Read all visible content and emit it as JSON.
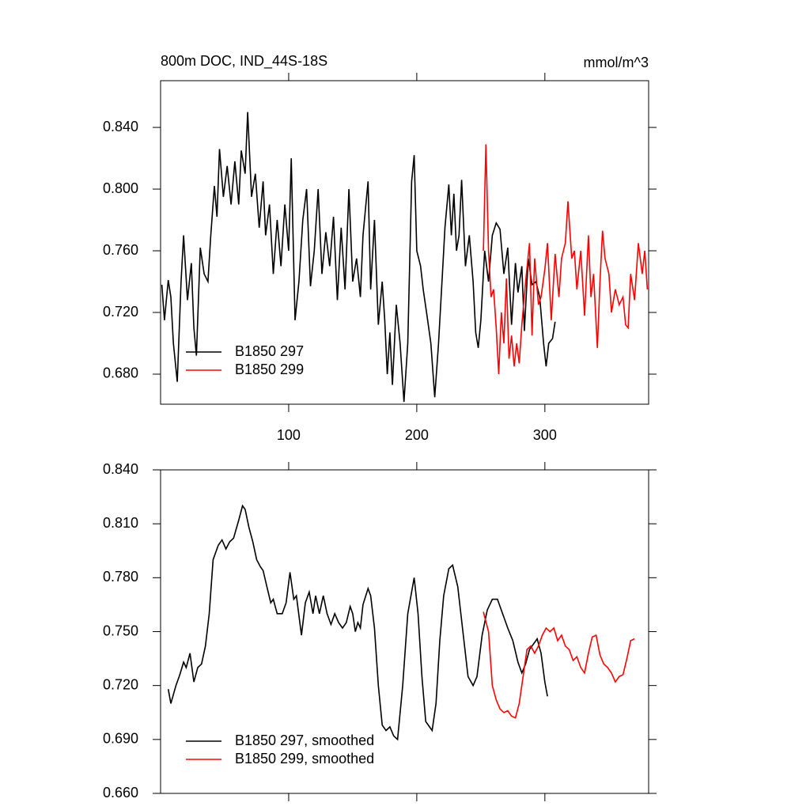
{
  "chart_data": [
    {
      "type": "line",
      "title": "800m DOC, IND_44S-18S",
      "units": "mmol/m^3",
      "xlim": [
        0,
        381
      ],
      "xticks": [
        100,
        200,
        300
      ],
      "xtick_labels": true,
      "ylim": [
        0.6605,
        0.8703
      ],
      "yticks": [
        {
          "value": 0.68,
          "label": "0.680"
        },
        {
          "value": 0.72,
          "label": "0.720"
        },
        {
          "value": 0.76,
          "label": "0.760"
        },
        {
          "value": 0.8,
          "label": "0.800"
        },
        {
          "value": 0.84,
          "label": "0.840"
        }
      ],
      "legend": "lower left",
      "series": [
        {
          "name": "B1850 297",
          "color": "#000000",
          "x": [
            1,
            3,
            6,
            8,
            10,
            13,
            16,
            18,
            21,
            24,
            26,
            28,
            31,
            34,
            37,
            39,
            42,
            44,
            46,
            49,
            52,
            55,
            58,
            61,
            63,
            66,
            68,
            71,
            74,
            77,
            80,
            82,
            85,
            88,
            91,
            94,
            97,
            100,
            102,
            105,
            108,
            111,
            114,
            117,
            120,
            123,
            126,
            129,
            132,
            135,
            138,
            141,
            144,
            147,
            150,
            153,
            156,
            158,
            162,
            164,
            167,
            170,
            173,
            175,
            177,
            179,
            181,
            184,
            187,
            190,
            193,
            196,
            198,
            200,
            203,
            205,
            208,
            211,
            214,
            217,
            220,
            222,
            225,
            227,
            229,
            231,
            233,
            235,
            238,
            241,
            244,
            246,
            248,
            250,
            253,
            256,
            259,
            262,
            265,
            268,
            271,
            274,
            277,
            279,
            282,
            284,
            287,
            290,
            293,
            296,
            299,
            301,
            303,
            306,
            308
          ],
          "values": [
            0.738,
            0.715,
            0.741,
            0.73,
            0.7,
            0.675,
            0.74,
            0.77,
            0.728,
            0.752,
            0.71,
            0.692,
            0.762,
            0.745,
            0.74,
            0.768,
            0.802,
            0.782,
            0.826,
            0.795,
            0.815,
            0.79,
            0.818,
            0.79,
            0.825,
            0.81,
            0.85,
            0.795,
            0.81,
            0.775,
            0.805,
            0.77,
            0.79,
            0.745,
            0.78,
            0.75,
            0.79,
            0.76,
            0.82,
            0.715,
            0.74,
            0.78,
            0.8,
            0.737,
            0.76,
            0.8,
            0.745,
            0.772,
            0.75,
            0.782,
            0.728,
            0.775,
            0.735,
            0.8,
            0.74,
            0.755,
            0.73,
            0.77,
            0.805,
            0.735,
            0.78,
            0.712,
            0.74,
            0.715,
            0.68,
            0.707,
            0.673,
            0.725,
            0.7,
            0.662,
            0.7,
            0.805,
            0.822,
            0.76,
            0.75,
            0.735,
            0.718,
            0.7,
            0.665,
            0.7,
            0.745,
            0.775,
            0.803,
            0.77,
            0.797,
            0.76,
            0.77,
            0.806,
            0.75,
            0.77,
            0.74,
            0.707,
            0.697,
            0.715,
            0.76,
            0.74,
            0.77,
            0.778,
            0.774,
            0.745,
            0.762,
            0.712,
            0.752,
            0.733,
            0.75,
            0.708,
            0.755,
            0.738,
            0.74,
            0.73,
            0.7,
            0.685,
            0.7,
            0.703,
            0.714
          ]
        },
        {
          "name": "B1850 299",
          "color": "#ff0000",
          "x": [
            252,
            254,
            256,
            258,
            260,
            262,
            264,
            266,
            268,
            270,
            272,
            274,
            276,
            278,
            280,
            282,
            285,
            288,
            290,
            292,
            295,
            297,
            300,
            302,
            305,
            308,
            311,
            313,
            316,
            318,
            321,
            323,
            325,
            328,
            331,
            334,
            336,
            338,
            341,
            343,
            345,
            347,
            350,
            352,
            355,
            358,
            361,
            363,
            365,
            367,
            370,
            373,
            376,
            378,
            380
          ],
          "values": [
            0.76,
            0.829,
            0.76,
            0.73,
            0.735,
            0.71,
            0.68,
            0.72,
            0.7,
            0.742,
            0.69,
            0.705,
            0.685,
            0.7,
            0.687,
            0.712,
            0.74,
            0.765,
            0.705,
            0.755,
            0.725,
            0.73,
            0.748,
            0.765,
            0.715,
            0.758,
            0.73,
            0.755,
            0.765,
            0.792,
            0.755,
            0.76,
            0.735,
            0.76,
            0.718,
            0.77,
            0.73,
            0.745,
            0.697,
            0.74,
            0.773,
            0.755,
            0.745,
            0.72,
            0.735,
            0.725,
            0.73,
            0.712,
            0.71,
            0.745,
            0.728,
            0.765,
            0.745,
            0.76,
            0.735
          ]
        }
      ]
    },
    {
      "type": "line",
      "xlim": [
        0,
        381
      ],
      "xticks": [
        100,
        200,
        300
      ],
      "xtick_labels": false,
      "ylim": [
        0.66,
        0.84
      ],
      "yticks": [
        {
          "value": 0.66,
          "label": "0.660"
        },
        {
          "value": 0.69,
          "label": "0.690"
        },
        {
          "value": 0.72,
          "label": "0.720"
        },
        {
          "value": 0.75,
          "label": "0.750"
        },
        {
          "value": 0.78,
          "label": "0.780"
        },
        {
          "value": 0.81,
          "label": "0.810"
        },
        {
          "value": 0.84,
          "label": "0.840"
        }
      ],
      "legend": "lower left",
      "series": [
        {
          "name": "B1850 297, smoothed",
          "color": "#000000",
          "x": [
            6,
            8,
            12,
            15,
            18,
            20,
            23,
            26,
            29,
            32,
            35,
            38,
            41,
            45,
            48,
            51,
            54,
            57,
            61,
            64,
            66,
            69,
            72,
            75,
            78,
            80,
            83,
            86,
            88,
            91,
            95,
            98,
            101,
            104,
            106,
            110,
            113,
            116,
            119,
            121,
            124,
            127,
            130,
            133,
            136,
            139,
            142,
            145,
            148,
            150,
            152,
            154,
            156,
            158,
            162,
            164,
            167,
            170,
            173,
            176,
            179,
            182,
            185,
            189,
            193,
            198,
            201,
            204,
            207,
            212,
            215,
            218,
            221,
            225,
            228,
            232,
            236,
            240,
            244,
            247,
            251,
            255,
            259,
            263,
            267,
            271,
            275,
            279,
            282,
            285,
            288,
            292,
            294,
            297,
            300,
            302
          ],
          "values": [
            0.718,
            0.71,
            0.72,
            0.726,
            0.733,
            0.73,
            0.738,
            0.722,
            0.73,
            0.732,
            0.742,
            0.76,
            0.79,
            0.798,
            0.801,
            0.796,
            0.8,
            0.802,
            0.812,
            0.82,
            0.818,
            0.808,
            0.8,
            0.79,
            0.786,
            0.784,
            0.775,
            0.766,
            0.768,
            0.76,
            0.76,
            0.766,
            0.783,
            0.768,
            0.77,
            0.748,
            0.766,
            0.772,
            0.76,
            0.77,
            0.76,
            0.77,
            0.76,
            0.754,
            0.76,
            0.755,
            0.752,
            0.755,
            0.764,
            0.76,
            0.75,
            0.755,
            0.752,
            0.765,
            0.774,
            0.77,
            0.752,
            0.72,
            0.698,
            0.695,
            0.697,
            0.692,
            0.69,
            0.72,
            0.76,
            0.78,
            0.76,
            0.725,
            0.7,
            0.695,
            0.71,
            0.745,
            0.77,
            0.785,
            0.787,
            0.775,
            0.75,
            0.725,
            0.72,
            0.725,
            0.748,
            0.762,
            0.768,
            0.768,
            0.76,
            0.752,
            0.745,
            0.733,
            0.727,
            0.732,
            0.74,
            0.744,
            0.746,
            0.738,
            0.722,
            0.714
          ]
        },
        {
          "name": "B1850 299, smoothed",
          "color": "#ff0000",
          "x": [
            252,
            256,
            259,
            262,
            265,
            268,
            271,
            274,
            277,
            280,
            283,
            286,
            289,
            292,
            295,
            298,
            301,
            304,
            307,
            310,
            313,
            316,
            319,
            322,
            325,
            328,
            331,
            334,
            337,
            340,
            343,
            346,
            349,
            352,
            355,
            358,
            361,
            364,
            367,
            370
          ],
          "values": [
            0.761,
            0.75,
            0.72,
            0.712,
            0.707,
            0.705,
            0.706,
            0.703,
            0.702,
            0.71,
            0.725,
            0.74,
            0.742,
            0.738,
            0.742,
            0.748,
            0.752,
            0.75,
            0.752,
            0.745,
            0.748,
            0.742,
            0.74,
            0.734,
            0.736,
            0.73,
            0.727,
            0.738,
            0.747,
            0.748,
            0.737,
            0.732,
            0.73,
            0.727,
            0.722,
            0.725,
            0.726,
            0.735,
            0.745,
            0.746
          ]
        }
      ]
    }
  ]
}
